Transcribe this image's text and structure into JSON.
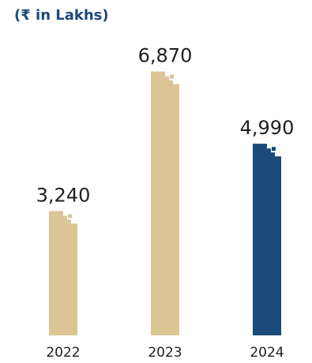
{
  "chart_data": {
    "type": "bar",
    "unit_label": "(₹ in Lakhs)",
    "categories": [
      "2022",
      "2023",
      "2024"
    ],
    "values": [
      3240,
      6870,
      4990
    ],
    "value_labels": [
      "3,240",
      "6,870",
      "4,990"
    ],
    "ylim": [
      0,
      7500
    ],
    "grid": false,
    "highlight_category": "2024",
    "colors": {
      "bar": "#dcc594",
      "highlight": "#1b4a7b",
      "text": "#1f1f1f",
      "unit_label": "#1b4a7b"
    }
  }
}
